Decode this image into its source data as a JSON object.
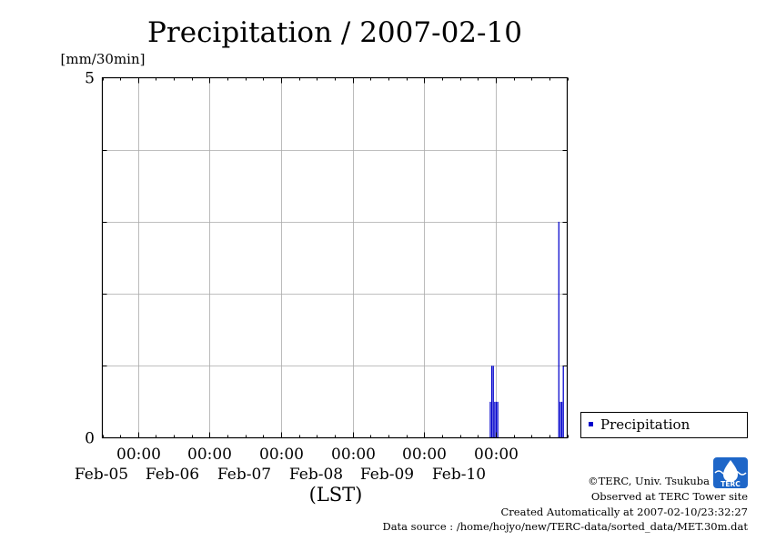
{
  "chart_data": {
    "type": "bar",
    "title": "Precipitation / 2007-02-10",
    "ylabel": "[mm/30min]",
    "xlabel": "(LST)",
    "ylim": [
      0,
      5
    ],
    "y_ticks": [
      "0",
      "5"
    ],
    "x_range": [
      "2007-02-04 12:00",
      "2007-02-10 24:00"
    ],
    "x_ticks": [
      {
        "time": "2007-02-05 00:00",
        "label1": "00:00",
        "label2": "Feb-05"
      },
      {
        "time": "2007-02-06 00:00",
        "label1": "00:00",
        "label2": "Feb-06"
      },
      {
        "time": "2007-02-07 00:00",
        "label1": "00:00",
        "label2": "Feb-07"
      },
      {
        "time": "2007-02-08 00:00",
        "label1": "00:00",
        "label2": "Feb-08"
      },
      {
        "time": "2007-02-09 00:00",
        "label1": "00:00",
        "label2": "Feb-09"
      },
      {
        "time": "2007-02-10 00:00",
        "label1": "00:00",
        "label2": "Feb-10"
      }
    ],
    "grid": true,
    "legend": {
      "position": "right",
      "entries": [
        "Precipitation"
      ]
    },
    "series": [
      {
        "name": "Precipitation",
        "color": "#0000cc",
        "points": [
          {
            "time": "2007-02-09 22:00",
            "value": 0.5
          },
          {
            "time": "2007-02-09 22:30",
            "value": 1.0
          },
          {
            "time": "2007-02-09 23:00",
            "value": 1.0
          },
          {
            "time": "2007-02-09 23:30",
            "value": 0.5
          },
          {
            "time": "2007-02-10 00:00",
            "value": 0.5
          },
          {
            "time": "2007-02-10 00:30",
            "value": 0.5
          },
          {
            "time": "2007-02-10 21:00",
            "value": 3.0
          },
          {
            "time": "2007-02-10 21:30",
            "value": 0.5
          },
          {
            "time": "2007-02-10 22:00",
            "value": 0.5
          },
          {
            "time": "2007-02-10 22:30",
            "value": 1.0
          }
        ]
      }
    ]
  },
  "credits": {
    "copyright": "©TERC, Univ. Tsukuba",
    "observed": "Observed at TERC Tower site",
    "created": "Created Automatically at 2007-02-10/23:32:27",
    "source": "Data source : /home/hojyo/new/TERC-data/sorted_data/MET.30m.dat"
  },
  "logo": {
    "text": "TERC",
    "color": "#1e66c8"
  }
}
